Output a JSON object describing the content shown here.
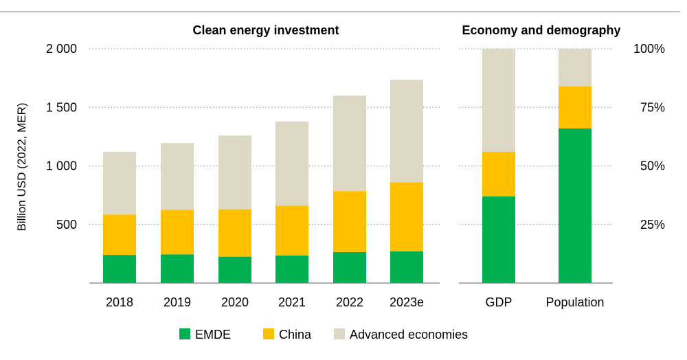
{
  "chart_data": [
    {
      "type": "bar",
      "stacked": true,
      "title": "Clean energy investment",
      "ylabel": "Billion USD (2022, MER)",
      "categories": [
        "2018",
        "2019",
        "2020",
        "2021",
        "2022",
        "2023e"
      ],
      "ylim": [
        0,
        2000
      ],
      "yticks": [
        500,
        1000,
        1500,
        2000
      ],
      "ytick_labels": [
        "500",
        "1 000",
        "1 500",
        "2 000"
      ],
      "grid": true,
      "series": [
        {
          "name": "EMDE",
          "color": "#00b050",
          "values": [
            240,
            245,
            225,
            235,
            265,
            270
          ]
        },
        {
          "name": "China",
          "color": "#ffc000",
          "values": [
            345,
            380,
            405,
            425,
            520,
            590
          ]
        },
        {
          "name": "Advanced economies",
          "color": "#ddd8c4",
          "values": [
            535,
            570,
            630,
            720,
            815,
            875
          ]
        }
      ]
    },
    {
      "type": "bar",
      "stacked": true,
      "title": "Economy and demography",
      "categories": [
        "GDP",
        "Population"
      ],
      "ylim": [
        0,
        100
      ],
      "yticks": [
        25,
        50,
        75,
        100
      ],
      "ytick_labels": [
        "25%",
        "50%",
        "75%",
        "100%"
      ],
      "y_axis_side": "right",
      "grid": true,
      "series": [
        {
          "name": "EMDE",
          "color": "#00b050",
          "values": [
            37,
            66
          ]
        },
        {
          "name": "China",
          "color": "#ffc000",
          "values": [
            19,
            18
          ]
        },
        {
          "name": "Advanced economies",
          "color": "#ddd8c4",
          "values": [
            44,
            16
          ]
        }
      ]
    }
  ],
  "legend": {
    "position": "bottom",
    "items": [
      {
        "label": "EMDE",
        "color": "#00b050"
      },
      {
        "label": "China",
        "color": "#ffc000"
      },
      {
        "label": "Advanced economies",
        "color": "#ddd8c4"
      }
    ]
  }
}
